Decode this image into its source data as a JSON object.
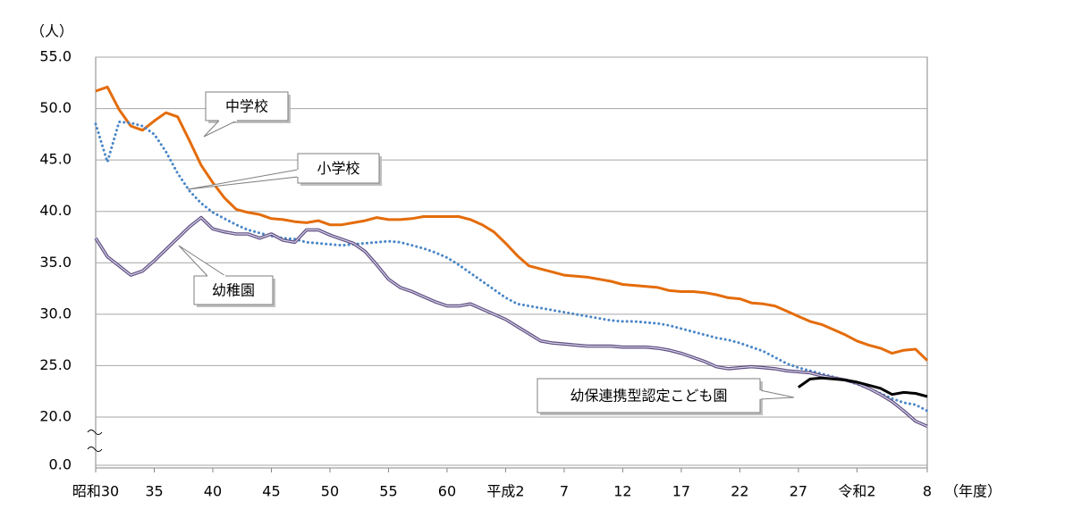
{
  "chart_data": {
    "type": "line",
    "y_label": "（人）",
    "x_label": "（年度）",
    "categories": [
      "昭和30",
      null,
      null,
      null,
      null,
      "35",
      null,
      null,
      null,
      null,
      "40",
      null,
      null,
      null,
      null,
      "45",
      null,
      null,
      null,
      null,
      "50",
      null,
      null,
      null,
      null,
      "55",
      null,
      null,
      null,
      null,
      "60",
      null,
      null,
      null,
      null,
      "平成2",
      null,
      null,
      null,
      null,
      "7",
      null,
      null,
      null,
      null,
      "12",
      null,
      null,
      null,
      null,
      "17",
      null,
      null,
      null,
      null,
      "22",
      null,
      null,
      null,
      null,
      "27",
      null,
      null,
      null,
      null,
      "令和2",
      null,
      null,
      null,
      null,
      null,
      "8"
    ],
    "ylim": [
      0,
      55
    ],
    "yticks": [
      {
        "value": 0,
        "label": "0.0"
      },
      {
        "value": 20,
        "label": "20.0"
      },
      {
        "value": 25,
        "label": "25.0"
      },
      {
        "value": 30,
        "label": "30.0"
      },
      {
        "value": 35,
        "label": "35.0"
      },
      {
        "value": 40,
        "label": "40.0"
      },
      {
        "value": 45,
        "label": "45.0"
      },
      {
        "value": 50,
        "label": "50.0"
      },
      {
        "value": 55,
        "label": "55.0"
      }
    ],
    "axis_break": true,
    "grid": true,
    "series": [
      {
        "name": "中学校",
        "color": "#e46c0a",
        "style": "solid",
        "values": [
          51.7,
          52.1,
          49.9,
          48.3,
          47.9,
          48.8,
          49.6,
          49.2,
          46.9,
          44.5,
          42.8,
          41.3,
          40.2,
          39.9,
          39.7,
          39.3,
          39.2,
          39.0,
          38.9,
          39.1,
          38.7,
          38.7,
          38.9,
          39.1,
          39.4,
          39.2,
          39.2,
          39.3,
          39.5,
          39.5,
          39.5,
          39.5,
          39.2,
          38.7,
          38.0,
          36.9,
          35.7,
          34.7,
          34.4,
          34.1,
          33.8,
          33.7,
          33.6,
          33.4,
          33.2,
          32.9,
          32.8,
          32.7,
          32.6,
          32.3,
          32.2,
          32.2,
          32.1,
          31.9,
          31.6,
          31.5,
          31.1,
          31.0,
          30.8,
          30.3,
          29.8,
          29.3,
          29.0,
          28.5,
          28.0,
          27.4,
          27.0,
          26.7,
          26.2,
          26.5,
          26.6,
          25.5
        ]
      },
      {
        "name": "小学校",
        "color": "#4a86c8",
        "style": "dotted",
        "values": [
          48.5,
          44.8,
          48.7,
          48.6,
          48.3,
          47.5,
          45.8,
          43.7,
          42.0,
          40.8,
          39.9,
          39.3,
          38.7,
          38.2,
          37.9,
          37.6,
          37.4,
          37.3,
          37.0,
          36.9,
          36.8,
          36.7,
          36.8,
          36.9,
          37.0,
          37.1,
          37.0,
          36.7,
          36.4,
          36.0,
          35.5,
          34.8,
          34.0,
          33.2,
          32.4,
          31.6,
          31.0,
          30.8,
          30.6,
          30.4,
          30.2,
          30.0,
          29.8,
          29.6,
          29.4,
          29.3,
          29.3,
          29.2,
          29.1,
          28.9,
          28.6,
          28.3,
          28.0,
          27.7,
          27.5,
          27.2,
          26.8,
          26.4,
          25.8,
          25.2,
          24.8,
          24.5,
          24.2,
          23.9,
          23.6,
          23.2,
          22.8,
          22.3,
          21.8,
          21.4,
          21.2,
          20.6
        ]
      },
      {
        "name": "幼稚園",
        "color": "#5e4f80",
        "style": "double",
        "values": [
          37.4,
          35.6,
          34.7,
          33.8,
          34.2,
          35.2,
          36.3,
          37.4,
          38.5,
          39.4,
          38.3,
          38.0,
          37.8,
          37.8,
          37.4,
          37.8,
          37.2,
          37.0,
          38.2,
          38.2,
          37.7,
          37.3,
          36.9,
          36.1,
          34.8,
          33.4,
          32.6,
          32.2,
          31.7,
          31.2,
          30.8,
          30.8,
          31.0,
          30.5,
          30.0,
          29.5,
          28.8,
          28.1,
          27.4,
          27.2,
          27.1,
          27.0,
          26.9,
          26.9,
          26.9,
          26.8,
          26.8,
          26.8,
          26.7,
          26.5,
          26.2,
          25.8,
          25.4,
          24.9,
          24.7,
          24.8,
          24.9,
          24.8,
          24.7,
          24.5,
          24.4,
          24.3,
          24.0,
          23.8,
          23.6,
          23.3,
          22.8,
          22.2,
          21.5,
          20.6,
          19.6,
          19.1
        ]
      },
      {
        "name": "幼保連携型認定こども園",
        "color": "#000000",
        "style": "solid",
        "values": [
          null,
          null,
          null,
          null,
          null,
          null,
          null,
          null,
          null,
          null,
          null,
          null,
          null,
          null,
          null,
          null,
          null,
          null,
          null,
          null,
          null,
          null,
          null,
          null,
          null,
          null,
          null,
          null,
          null,
          null,
          null,
          null,
          null,
          null,
          null,
          null,
          null,
          null,
          null,
          null,
          null,
          null,
          null,
          null,
          null,
          null,
          null,
          null,
          null,
          null,
          null,
          null,
          null,
          null,
          null,
          null,
          null,
          null,
          null,
          null,
          22.9,
          23.7,
          23.8,
          23.7,
          23.6,
          23.4,
          23.1,
          22.8,
          22.2,
          22.4,
          22.3,
          22.0
        ]
      }
    ]
  }
}
